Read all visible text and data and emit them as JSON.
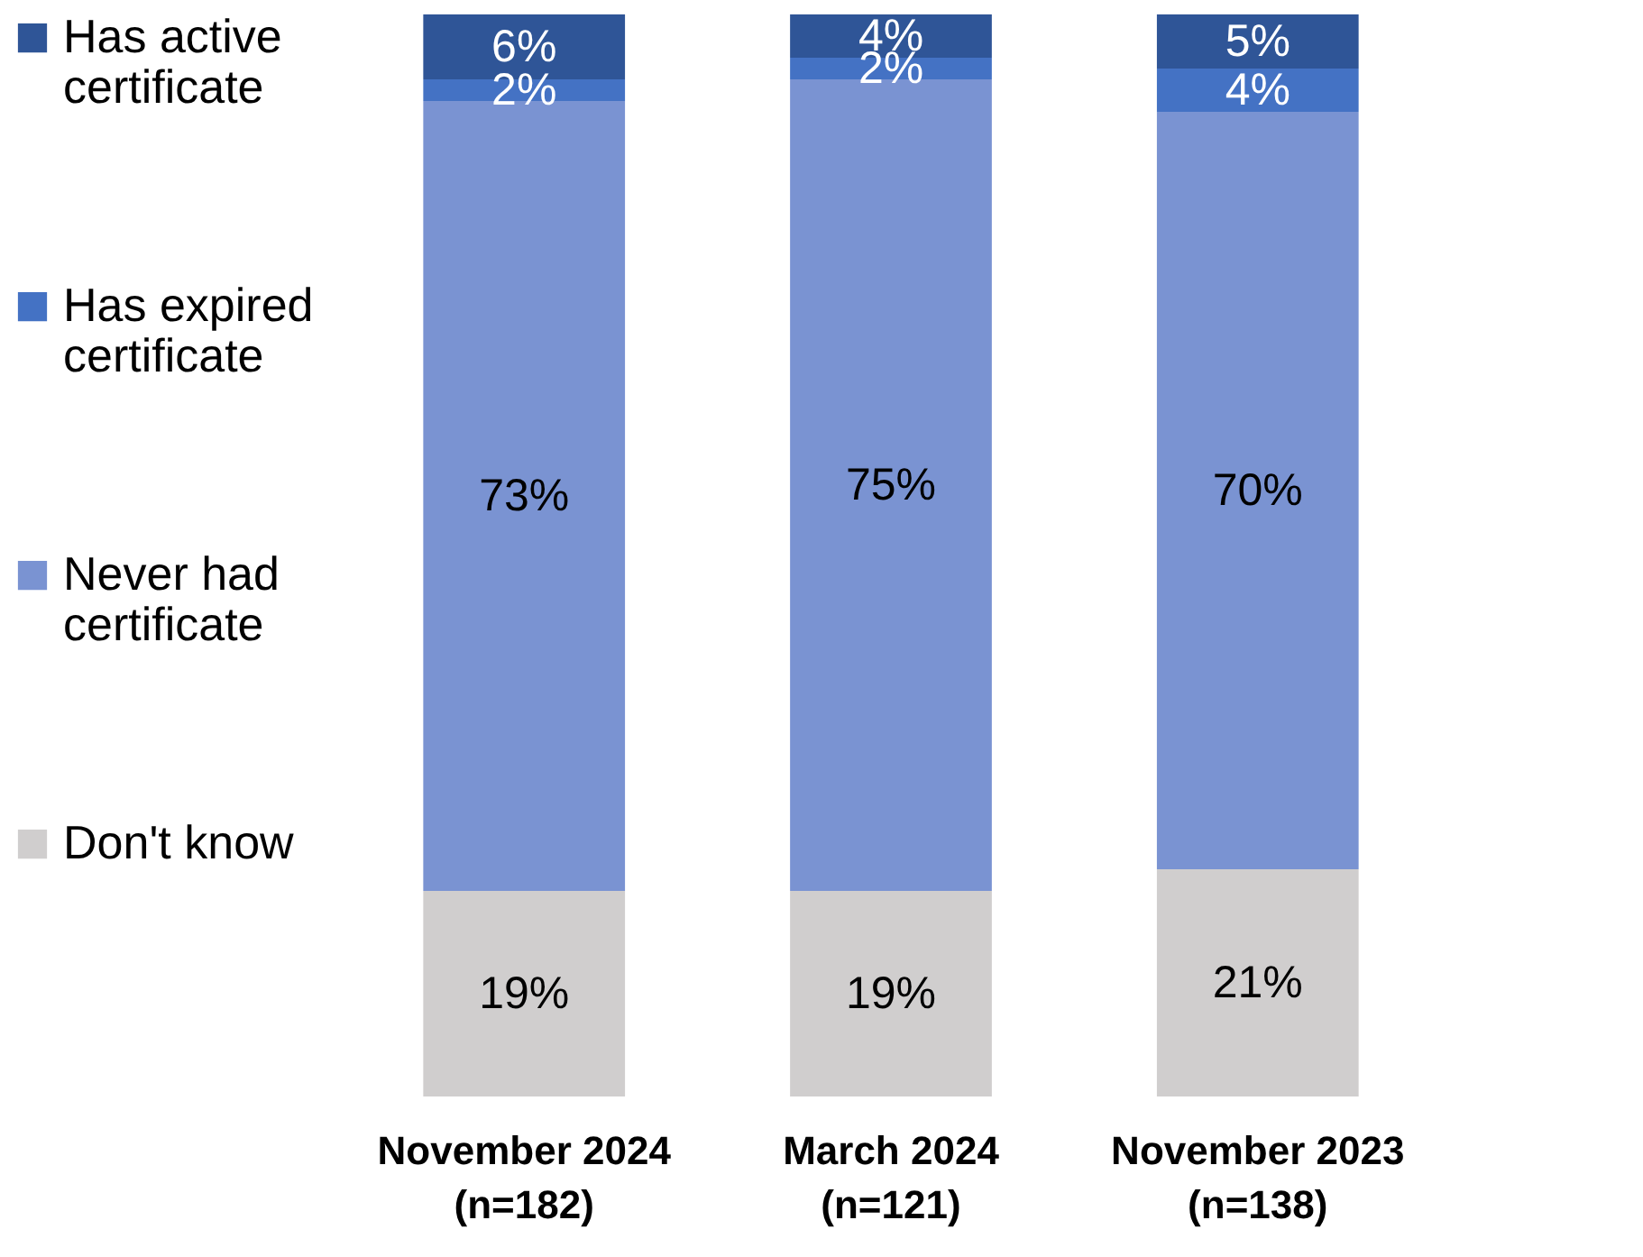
{
  "chart_data": {
    "type": "bar",
    "stacked": true,
    "categories": [
      "November 2024 (n=182)",
      "March 2024 (n=121)",
      "November 2023 (n=138)"
    ],
    "series": [
      {
        "name": "Don't know",
        "color": "#d0cece",
        "values": [
          19,
          19,
          21
        ],
        "value_labels": [
          "19%",
          "19%",
          "21%"
        ]
      },
      {
        "name": "Never had certificate",
        "color": "#7a93d2",
        "values": [
          73,
          75,
          70
        ],
        "value_labels": [
          "73%",
          "75%",
          "70%"
        ]
      },
      {
        "name": "Has expired certificate",
        "color": "#4472c4",
        "values": [
          2,
          2,
          4
        ],
        "value_labels": [
          "2%",
          "2%",
          "4%"
        ]
      },
      {
        "name": "Has active certificate",
        "color": "#2f5597",
        "values": [
          6,
          4,
          5
        ],
        "value_labels": [
          "6%",
          "4%",
          "5%"
        ]
      }
    ],
    "legend": "left"
  }
}
